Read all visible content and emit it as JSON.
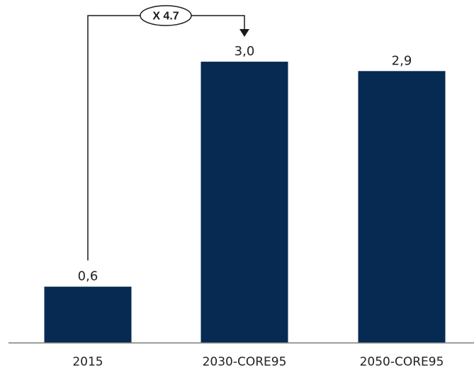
{
  "chart_data": {
    "type": "bar",
    "title": "",
    "xlabel": "",
    "ylabel": "",
    "categories": [
      "2015",
      "2030-CORE95",
      "2050-CORE95"
    ],
    "values": [
      0.6,
      3.0,
      2.9
    ],
    "value_labels": [
      "0,6",
      "3,0",
      "2,9"
    ],
    "ylim": [
      0,
      3.25
    ],
    "grid": false,
    "legend": "none",
    "bar_color": "#062a52",
    "axis_color": "#7f7f7f",
    "annotation": {
      "text": "X 4.7",
      "from_category": "2015",
      "to_category": "2030-CORE95"
    }
  }
}
